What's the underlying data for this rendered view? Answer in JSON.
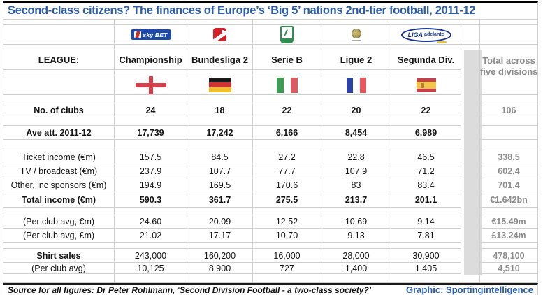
{
  "title": "Second-class citizens? The finances of Europe’s ‘Big 5’ nations 2nd-tier football, 2011-12",
  "colors": {
    "title_blue": "#2a5caa",
    "credit_blue": "#2a5caa",
    "totals_gray": "#8c8c8c",
    "separator_band_gray": "#dcdcdc",
    "gridline_gray": "#cfcfcf"
  },
  "icons": {
    "logos": [
      "sky-bet-championship",
      "bundesliga-2",
      "serie-b",
      "ligue-2",
      "liga-adelante"
    ],
    "flags": [
      "england-flag",
      "germany-flag",
      "italy-flag",
      "france-flag",
      "spain-flag"
    ]
  },
  "logos": {
    "championship": "sky BET",
    "liga_adelante_main": "LIGA",
    "liga_adelante_sub": "adelante"
  },
  "chart_data": {
    "type": "table",
    "league_label": "LEAGUE:",
    "leagues": [
      "Championship",
      "Bundesliga 2",
      "Serie B",
      "Ligue 2",
      "Segunda Div."
    ],
    "total_header": {
      "line1": "Total across",
      "line2": "five divisions"
    },
    "rows": [
      {
        "label": "No. of clubs",
        "bold": true,
        "values": [
          "24",
          "18",
          "22",
          "20",
          "22"
        ],
        "total": "106"
      },
      {
        "label": "Ave att. 2011-12",
        "bold": true,
        "values": [
          "17,739",
          "17,242",
          "6,166",
          "8,454",
          "6,989"
        ],
        "total": ""
      },
      {
        "label": "Ticket income (€m)",
        "bold": false,
        "values": [
          "157.5",
          "84.5",
          "27.2",
          "22.8",
          "46.5"
        ],
        "total": "338.5"
      },
      {
        "label": "TV / broadcast (€m)",
        "bold": false,
        "values": [
          "237.9",
          "107.7",
          "77.7",
          "107.9",
          "71.2"
        ],
        "total": "602.4"
      },
      {
        "label": "Other, inc sponsors (€m)",
        "bold": false,
        "values": [
          "194.9",
          "169.5",
          "170.6",
          "83",
          "83.4"
        ],
        "total": "701.4"
      },
      {
        "label": "Total income (€m)",
        "bold": true,
        "values": [
          "590.3",
          "361.7",
          "275.5",
          "213.7",
          "201.1"
        ],
        "total": "€1.642bn"
      },
      {
        "label": "(Per club avg, €m)",
        "bold": false,
        "values": [
          "24.60",
          "20.09",
          "12.52",
          "10.69",
          "9.14"
        ],
        "total": "€15.49m"
      },
      {
        "label": "(Per club avg, £m)",
        "bold": false,
        "values": [
          "21.02",
          "17.17",
          "10.70",
          "9.13",
          "7.81"
        ],
        "total": "£13.24m"
      },
      {
        "label": "Shirt sales",
        "bold": false,
        "bold_label": true,
        "values": [
          "243,000",
          "160,200",
          "16,000",
          "28,000",
          "30,900"
        ],
        "total": "478,100"
      },
      {
        "label": "(Per club avg)",
        "bold": false,
        "values": [
          "10,125",
          "8,900",
          "727",
          "1,400",
          "1,405"
        ],
        "total": "4,510"
      }
    ]
  },
  "footer": {
    "source": "Source for all figures: Dr Peter Rohlmann, ‘Second Division Football - a two-class society?’",
    "credit": "Graphic: Sportingintelligence"
  }
}
